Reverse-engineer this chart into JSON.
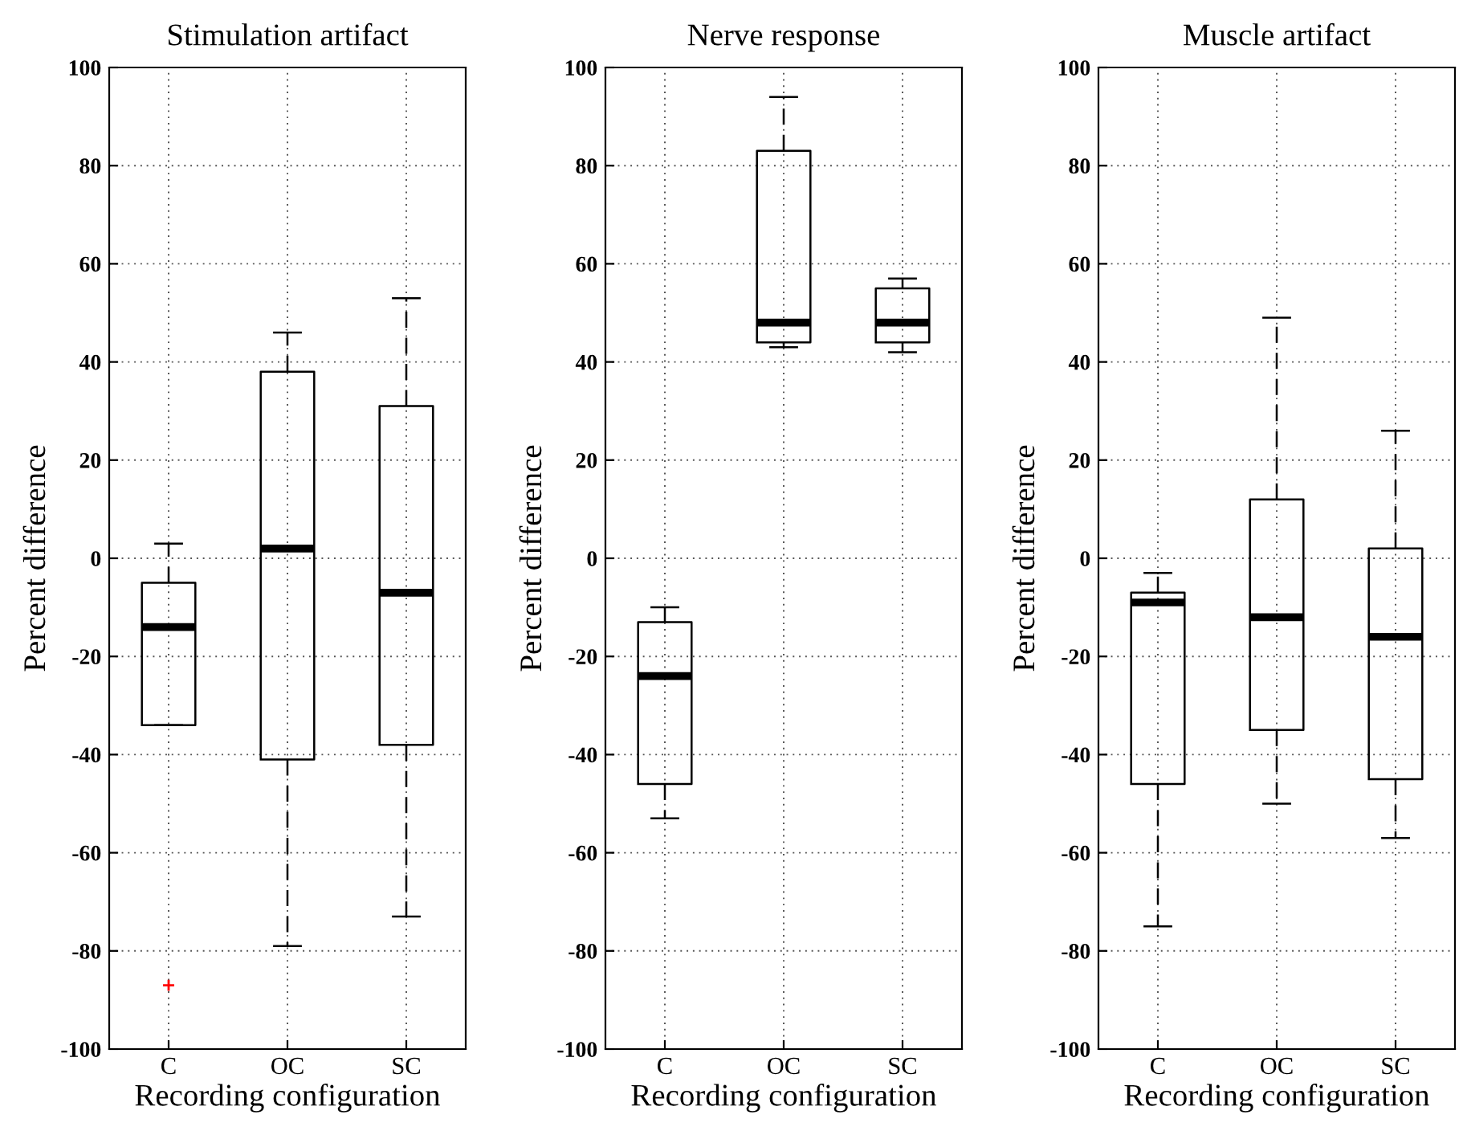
{
  "chart_data": [
    {
      "type": "box",
      "title": "Stimulation artifact",
      "xlabel": "Recording configuration",
      "ylabel": "Percent difference",
      "categories": [
        "C",
        "OC",
        "SC"
      ],
      "ylim": [
        -100,
        100
      ],
      "yticks": [
        -100,
        -80,
        -60,
        -40,
        -20,
        0,
        20,
        40,
        60,
        80,
        100
      ],
      "grid": true,
      "boxes": [
        {
          "low": -34,
          "q1": -34,
          "median": -14,
          "q3": -5,
          "high": 3,
          "outliers": [
            -87
          ]
        },
        {
          "low": -79,
          "q1": -41,
          "median": 2,
          "q3": 38,
          "high": 46
        },
        {
          "low": -73,
          "q1": -38,
          "median": -7,
          "q3": 31,
          "high": 53
        }
      ]
    },
    {
      "type": "box",
      "title": "Nerve response",
      "xlabel": "Recording configuration",
      "ylabel": "Percent difference",
      "categories": [
        "C",
        "OC",
        "SC"
      ],
      "ylim": [
        -100,
        100
      ],
      "yticks": [
        -100,
        -80,
        -60,
        -40,
        -20,
        0,
        20,
        40,
        60,
        80,
        100
      ],
      "grid": true,
      "boxes": [
        {
          "low": -53,
          "q1": -46,
          "median": -24,
          "q3": -13,
          "high": -10
        },
        {
          "low": 43,
          "q1": 44,
          "median": 48,
          "q3": 83,
          "high": 94
        },
        {
          "low": 42,
          "q1": 44,
          "median": 48,
          "q3": 55,
          "high": 57
        }
      ]
    },
    {
      "type": "box",
      "title": "Muscle artifact",
      "xlabel": "Recording configuration",
      "ylabel": "Percent difference",
      "categories": [
        "C",
        "OC",
        "SC"
      ],
      "ylim": [
        -100,
        100
      ],
      "yticks": [
        -100,
        -80,
        -60,
        -40,
        -20,
        0,
        20,
        40,
        60,
        80,
        100
      ],
      "grid": true,
      "boxes": [
        {
          "low": -75,
          "q1": -46,
          "median": -9,
          "q3": -7,
          "high": -3
        },
        {
          "low": -50,
          "q1": -35,
          "median": -12,
          "q3": 12,
          "high": 49
        },
        {
          "low": -57,
          "q1": -45,
          "median": -16,
          "q3": 2,
          "high": 26
        }
      ]
    }
  ]
}
